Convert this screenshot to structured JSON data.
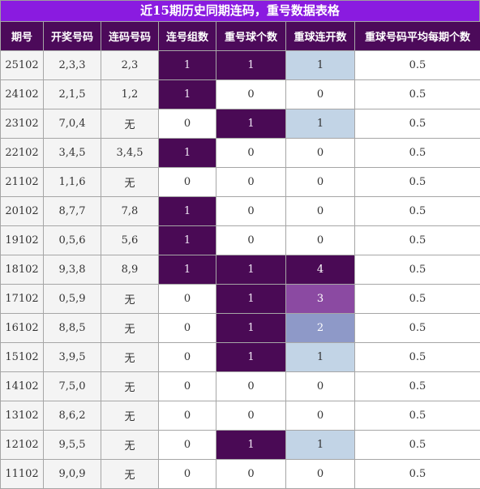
{
  "title": "近15期历史同期连码，重号数据表格",
  "headers": [
    "期号",
    "开奖号码",
    "连码号码",
    "连号组数",
    "重号球个数",
    "重球连开数",
    "重球号码平均每期个数"
  ],
  "rows": [
    {
      "issue": "25102",
      "draw": "2,3,3",
      "consec": "2,3",
      "groups": "1",
      "repeat": "1",
      "run": "1",
      "avg": "0.5"
    },
    {
      "issue": "24102",
      "draw": "2,1,5",
      "consec": "1,2",
      "groups": "1",
      "repeat": "0",
      "run": "0",
      "avg": "0.5"
    },
    {
      "issue": "23102",
      "draw": "7,0,4",
      "consec": "无",
      "groups": "0",
      "repeat": "1",
      "run": "1",
      "avg": "0.5"
    },
    {
      "issue": "22102",
      "draw": "3,4,5",
      "consec": "3,4,5",
      "groups": "1",
      "repeat": "0",
      "run": "0",
      "avg": "0.5"
    },
    {
      "issue": "21102",
      "draw": "1,1,6",
      "consec": "无",
      "groups": "0",
      "repeat": "0",
      "run": "0",
      "avg": "0.5"
    },
    {
      "issue": "20102",
      "draw": "8,7,7",
      "consec": "7,8",
      "groups": "1",
      "repeat": "0",
      "run": "0",
      "avg": "0.5"
    },
    {
      "issue": "19102",
      "draw": "0,5,6",
      "consec": "5,6",
      "groups": "1",
      "repeat": "0",
      "run": "0",
      "avg": "0.5"
    },
    {
      "issue": "18102",
      "draw": "9,3,8",
      "consec": "8,9",
      "groups": "1",
      "repeat": "1",
      "run": "4",
      "avg": "0.5"
    },
    {
      "issue": "17102",
      "draw": "0,5,9",
      "consec": "无",
      "groups": "0",
      "repeat": "1",
      "run": "3",
      "avg": "0.5"
    },
    {
      "issue": "16102",
      "draw": "8,8,5",
      "consec": "无",
      "groups": "0",
      "repeat": "1",
      "run": "2",
      "avg": "0.5"
    },
    {
      "issue": "15102",
      "draw": "3,9,5",
      "consec": "无",
      "groups": "0",
      "repeat": "1",
      "run": "1",
      "avg": "0.5"
    },
    {
      "issue": "14102",
      "draw": "7,5,0",
      "consec": "无",
      "groups": "0",
      "repeat": "0",
      "run": "0",
      "avg": "0.5"
    },
    {
      "issue": "13102",
      "draw": "8,6,2",
      "consec": "无",
      "groups": "0",
      "repeat": "0",
      "run": "0",
      "avg": "0.5"
    },
    {
      "issue": "12102",
      "draw": "9,5,5",
      "consec": "无",
      "groups": "0",
      "repeat": "1",
      "run": "1",
      "avg": "0.5"
    },
    {
      "issue": "11102",
      "draw": "9,0,9",
      "consec": "无",
      "groups": "0",
      "repeat": "0",
      "run": "0",
      "avg": "0.5"
    }
  ],
  "colors": {
    "title_bg": "#8a1be0",
    "header_bg": "#4c0a5a",
    "highlight_dark": "#4a0a55",
    "run_1": "#c2d4e6",
    "run_2": "#8e99c8",
    "run_3": "#8b4aa2",
    "run_4": "#4a0a55"
  }
}
